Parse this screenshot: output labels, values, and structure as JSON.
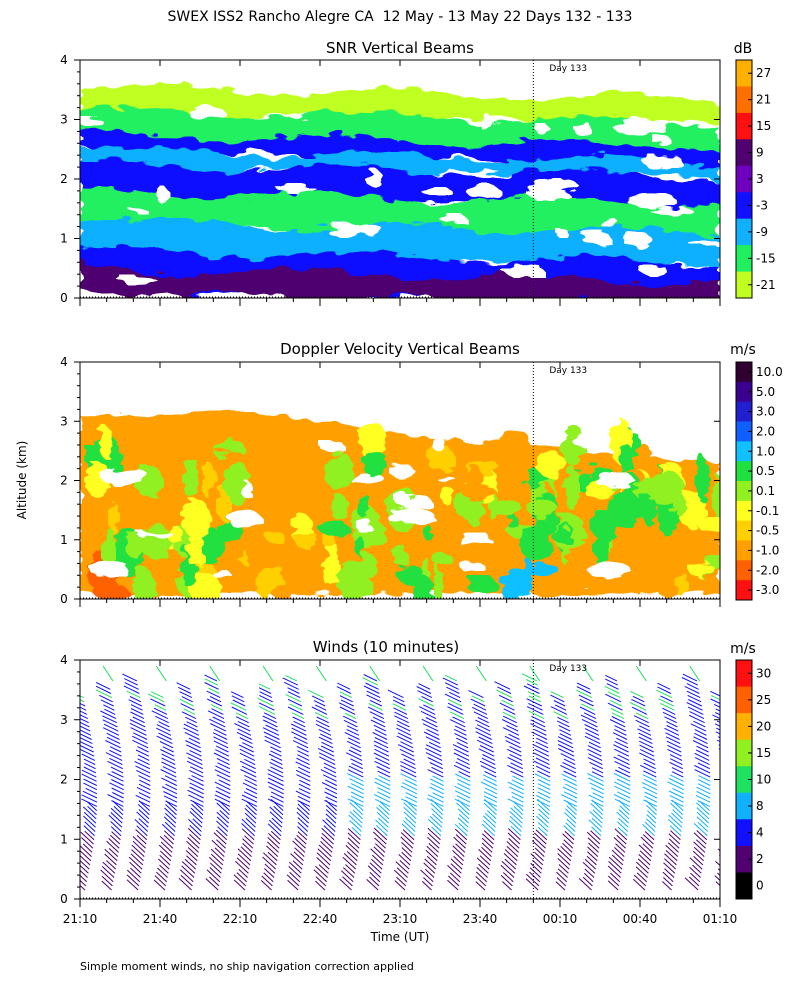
{
  "figure": {
    "title": "SWEX ISS2 Rancho Alegre CA  12 May - 13 May 22 Days 132 - 133",
    "footnote": "Simple moment winds, no ship navigation correction applied",
    "xlabel": "Time (UT)",
    "ylabel": "Altitude (km)"
  },
  "chart_data": [
    {
      "type": "heatmap",
      "id": "snr",
      "title": "SNR Vertical Beams",
      "unit": "dB",
      "x_ticks": [
        "21:10",
        "21:40",
        "22:10",
        "22:40",
        "23:10",
        "23:40",
        "00:10",
        "00:40",
        "01:10"
      ],
      "y_ticks": [
        "0",
        "1",
        "2",
        "3",
        "4"
      ],
      "ylim": [
        0,
        4
      ],
      "day_marker": {
        "label": "Day 133",
        "time": "00:00"
      },
      "colorbar_labels": [
        "27",
        "21",
        "15",
        "9",
        "3",
        "-3",
        "-9",
        "-15",
        "-21"
      ],
      "colorbar_colors": [
        "#ffb000",
        "#ff7000",
        "#ff1010",
        "#500070",
        "#7000c0",
        "#1010ff",
        "#10b0ff",
        "#20f060",
        "#c0ff20"
      ],
      "layers": [
        {
          "altitude_km": 3.3,
          "value_db": -19
        },
        {
          "altitude_km": 2.9,
          "value_db": -13
        },
        {
          "altitude_km": 2.6,
          "value_db": -3
        },
        {
          "altitude_km": 2.0,
          "value_db": -3
        },
        {
          "altitude_km": 1.0,
          "value_db": -9
        },
        {
          "altitude_km": 0.4,
          "value_db": 6
        }
      ]
    },
    {
      "type": "heatmap",
      "id": "doppler",
      "title": "Doppler Velocity Vertical Beams",
      "unit": "m/s",
      "x_ticks": [
        "21:10",
        "21:40",
        "22:10",
        "22:40",
        "23:10",
        "23:40",
        "00:10",
        "00:40",
        "01:10"
      ],
      "y_ticks": [
        "0",
        "1",
        "2",
        "3",
        "4"
      ],
      "ylim": [
        0,
        4
      ],
      "day_marker": {
        "label": "Day 133",
        "time": "00:00"
      },
      "colorbar_labels": [
        "10.0",
        "5.0",
        "3.0",
        "2.0",
        "1.0",
        "0.5",
        "0.1",
        "-0.1",
        "-0.5",
        "-1.0",
        "-2.0",
        "-3.0"
      ],
      "colorbar_colors": [
        "#300030",
        "#3a0090",
        "#2020d0",
        "#1060ff",
        "#10c0ff",
        "#20e040",
        "#90f020",
        "#ffff20",
        "#ffd000",
        "#ffa000",
        "#ff6000",
        "#ff1010"
      ],
      "layers": [
        {
          "altitude_km": 2.8,
          "value_ms": -0.5
        },
        {
          "altitude_km": 1.8,
          "value_ms": -0.3
        },
        {
          "altitude_km": 1.0,
          "value_ms": 0.2
        },
        {
          "altitude_km": 0.4,
          "value_ms": -0.8
        }
      ]
    },
    {
      "type": "scatter",
      "id": "winds",
      "title": "Winds (10 minutes)",
      "unit": "m/s",
      "x_ticks": [
        "21:10",
        "21:40",
        "22:10",
        "22:40",
        "23:10",
        "23:40",
        "00:10",
        "00:40",
        "01:10"
      ],
      "y_ticks": [
        "0",
        "1",
        "2",
        "3",
        "4"
      ],
      "ylim": [
        0,
        4
      ],
      "day_marker": {
        "label": "Day 133",
        "time": "00:00"
      },
      "colorbar_labels": [
        "30",
        "25",
        "20",
        "15",
        "10",
        "8",
        "4",
        "2",
        "0"
      ],
      "colorbar_colors": [
        "#ff1010",
        "#ff6000",
        "#ffb000",
        "#90f020",
        "#20e060",
        "#10b0ff",
        "#1010ff",
        "#500070",
        "#000000"
      ],
      "profiles_minutes_after_2110": [
        0,
        10,
        20,
        30,
        40,
        50,
        60,
        70,
        80,
        90,
        100,
        110,
        120,
        130,
        140,
        150,
        160,
        170,
        180,
        190,
        200,
        210,
        220,
        230,
        240
      ],
      "speed_by_altitude": [
        {
          "altitude_km": 0.5,
          "speed_ms": 3
        },
        {
          "altitude_km": 1.5,
          "speed_ms": 8
        },
        {
          "altitude_km": 2.5,
          "speed_ms": 5
        },
        {
          "altitude_km": 3.5,
          "speed_ms": 6
        }
      ]
    }
  ]
}
